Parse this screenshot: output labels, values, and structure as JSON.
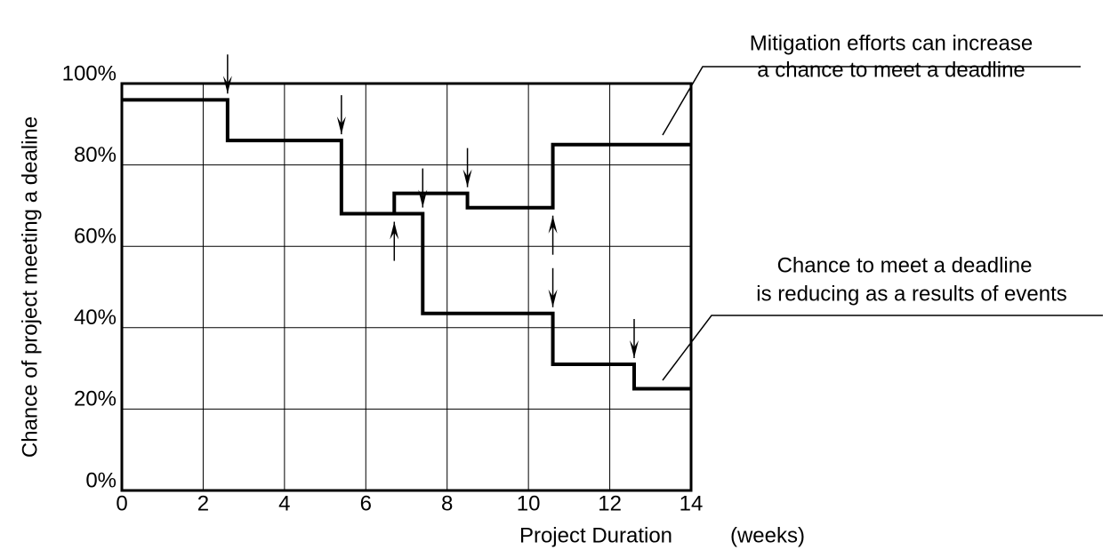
{
  "chart_data": {
    "type": "step",
    "xlabel": "Project Duration",
    "xunit": "(weeks)",
    "ylabel": "Chance of project meeting a dealine",
    "xlim": [
      0,
      14
    ],
    "xticks": [
      0,
      2,
      4,
      6,
      8,
      10,
      12,
      14
    ],
    "ylim": [
      0,
      100
    ],
    "yticks": [
      {
        "value": 0,
        "label": "0%"
      },
      {
        "value": 20,
        "label": "20%"
      },
      {
        "value": 40,
        "label": "40%"
      },
      {
        "value": 60,
        "label": "60%"
      },
      {
        "value": 80,
        "label": "80%"
      },
      {
        "value": 100,
        "label": "100%"
      }
    ],
    "grid": true,
    "color": "#000000",
    "series": [
      {
        "x": [
          0,
          2.6,
          5.4,
          7.4,
          10.6,
          12.6
        ],
        "values": [
          96,
          86,
          68,
          43.5,
          31,
          25
        ]
      },
      {
        "x": [
          6.7,
          8.5,
          10.6
        ],
        "values": [
          73,
          69.5,
          85
        ]
      }
    ],
    "annotations": [
      {
        "lines": [
          "Mitigation efforts can increase",
          "a chance to meet a deadline"
        ]
      },
      {
        "lines": [
          "Chance to meet a deadline",
          "is reducing as a results of events"
        ]
      }
    ]
  }
}
